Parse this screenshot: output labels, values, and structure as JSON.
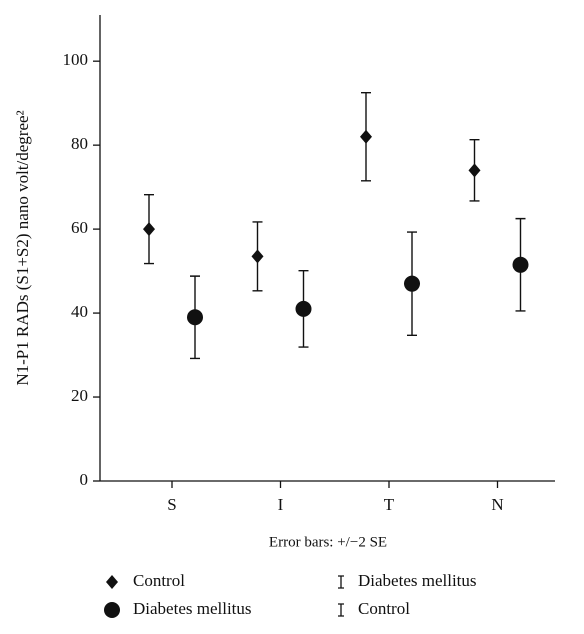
{
  "chart_data": {
    "type": "errorbar",
    "y_label": "N1-P1 RADs (S1+S2) nano volt/degree²",
    "x_label": "Error bars: +/−2 SE",
    "categories": [
      "S",
      "I",
      "T",
      "N"
    ],
    "series": [
      {
        "name": "Control",
        "color": "#111111",
        "marker": "diamond",
        "values": [
          60,
          53.5,
          82,
          74
        ],
        "errors": [
          8.2,
          8.2,
          10.5,
          7.3
        ]
      },
      {
        "name": "Diabetes mellitus",
        "color": "#111111",
        "marker": "circle",
        "values": [
          39,
          41,
          47,
          51.5
        ],
        "errors": [
          9.8,
          9.1,
          12.3,
          11
        ]
      }
    ],
    "ylim": [
      0,
      111
    ],
    "yticks": [
      0,
      20,
      40,
      60,
      80,
      100
    ],
    "grid": false
  }
}
